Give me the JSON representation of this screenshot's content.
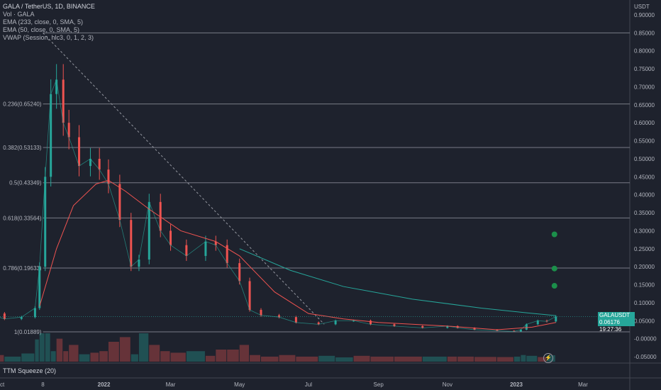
{
  "legend": {
    "title": "GALA / TetherUS, 1D, BINANCE",
    "lines": [
      "Vol · GALA",
      "EMA (233, close, 0, SMA, 5)",
      "EMA (50, close, 0, SMA, 5)",
      "VWAP (Session, hlc3, 0, 1, 2, 3)"
    ]
  },
  "indicator_label": "TTM Squeeze (20)",
  "price_tag": {
    "symbol": "GALAUSDT",
    "price": "0.06176",
    "countdown": "19:27:36"
  },
  "colors": {
    "bg": "#1e222d",
    "up": "#26a69a",
    "down": "#ef5350",
    "ema233": "#26a69a",
    "ema50": "#ef5350",
    "fib": "#787b86",
    "dot": "#1b8f4a"
  },
  "chart_data": {
    "type": "candlestick",
    "title": "GALA / TetherUS, 1D, BINANCE",
    "ylabel": "USDT",
    "ylim": [
      -0.06,
      0.91
    ],
    "y_ticks": [
      0.9,
      0.85,
      0.8,
      0.75,
      0.7,
      0.65,
      0.6,
      0.55,
      0.5,
      0.45,
      0.4,
      0.35,
      0.3,
      0.25,
      0.2,
      0.15,
      0.1,
      0.05,
      0.0,
      -0.05
    ],
    "y_tick_labels": [
      "0.90000",
      "0.85000",
      "0.80000",
      "0.75000",
      "0.70000",
      "0.65000",
      "0.60000",
      "0.55000",
      "0.50000",
      "0.45000",
      "0.40000",
      "0.35000",
      "0.30000",
      "0.25000",
      "0.20000",
      "0.15000",
      "0.10000",
      "0.05000",
      "-0.00000",
      "-0.05000"
    ],
    "x_ticks": [
      "Oct",
      "8",
      "2022",
      "Mar",
      "May",
      "Jul",
      "Sep",
      "Nov",
      "2023",
      "Mar"
    ],
    "x_tick_dates": [
      "2021-10-01",
      "2021-11-08",
      "2022-01-01",
      "2022-03-01",
      "2022-05-01",
      "2022-07-01",
      "2022-09-01",
      "2022-11-01",
      "2023-01-01",
      "2023-03-01"
    ],
    "fib_levels": [
      {
        "label": "0.236(0.65240)",
        "value": 0.6524
      },
      {
        "label": "0.382(0.53133)",
        "value": 0.53133
      },
      {
        "label": "0.5(0.43349)",
        "value": 0.43349
      },
      {
        "label": "0.618(0.33564)",
        "value": 0.33564
      },
      {
        "label": "0.786(0.19633)",
        "value": 0.19633
      },
      {
        "label": "1(0.01889)",
        "value": 0.01889
      }
    ],
    "fib_top": 0.85,
    "close_series": [
      [
        "2021-09-01",
        0.06
      ],
      [
        "2021-09-20",
        0.07
      ],
      [
        "2021-10-05",
        0.055
      ],
      [
        "2021-10-20",
        0.06
      ],
      [
        "2021-11-01",
        0.085
      ],
      [
        "2021-11-05",
        0.2
      ],
      [
        "2021-11-10",
        0.45
      ],
      [
        "2021-11-15",
        0.68
      ],
      [
        "2021-11-20",
        0.72
      ],
      [
        "2021-11-26",
        0.6
      ],
      [
        "2021-12-01",
        0.56
      ],
      [
        "2021-12-10",
        0.48
      ],
      [
        "2021-12-20",
        0.5
      ],
      [
        "2021-12-28",
        0.47
      ],
      [
        "2022-01-05",
        0.43
      ],
      [
        "2022-01-15",
        0.33
      ],
      [
        "2022-01-25",
        0.2
      ],
      [
        "2022-02-01",
        0.22
      ],
      [
        "2022-02-10",
        0.38
      ],
      [
        "2022-02-20",
        0.3
      ],
      [
        "2022-03-01",
        0.26
      ],
      [
        "2022-03-15",
        0.23
      ],
      [
        "2022-04-01",
        0.27
      ],
      [
        "2022-04-10",
        0.26
      ],
      [
        "2022-04-20",
        0.21
      ],
      [
        "2022-05-01",
        0.16
      ],
      [
        "2022-05-10",
        0.08
      ],
      [
        "2022-05-20",
        0.065
      ],
      [
        "2022-06-05",
        0.06
      ],
      [
        "2022-06-20",
        0.045
      ],
      [
        "2022-07-10",
        0.04
      ],
      [
        "2022-07-25",
        0.05
      ],
      [
        "2022-08-10",
        0.05
      ],
      [
        "2022-08-25",
        0.04
      ],
      [
        "2022-09-15",
        0.035
      ],
      [
        "2022-10-10",
        0.03
      ],
      [
        "2022-11-01",
        0.035
      ],
      [
        "2022-11-10",
        0.03
      ],
      [
        "2022-11-25",
        0.025
      ],
      [
        "2022-12-15",
        0.022
      ],
      [
        "2022-12-30",
        0.02
      ],
      [
        "2023-01-05",
        0.025
      ],
      [
        "2023-01-10",
        0.04
      ],
      [
        "2023-01-20",
        0.05
      ],
      [
        "2023-01-28",
        0.048
      ],
      [
        "2023-02-05",
        0.06176
      ]
    ],
    "ema50_series": [
      [
        "2021-11-05",
        0.09
      ],
      [
        "2021-11-20",
        0.25
      ],
      [
        "2021-12-05",
        0.37
      ],
      [
        "2021-12-25",
        0.43
      ],
      [
        "2022-01-05",
        0.44
      ],
      [
        "2022-01-20",
        0.41
      ],
      [
        "2022-02-10",
        0.36
      ],
      [
        "2022-03-10",
        0.3
      ],
      [
        "2022-04-10",
        0.27
      ],
      [
        "2022-05-01",
        0.23
      ],
      [
        "2022-06-01",
        0.13
      ],
      [
        "2022-07-01",
        0.07
      ],
      [
        "2022-08-01",
        0.055
      ],
      [
        "2022-09-01",
        0.045
      ],
      [
        "2022-11-01",
        0.035
      ],
      [
        "2022-12-15",
        0.025
      ],
      [
        "2023-01-15",
        0.032
      ],
      [
        "2023-02-05",
        0.045
      ]
    ],
    "ema233_series": [
      [
        "2022-05-01",
        0.25
      ],
      [
        "2022-06-15",
        0.19
      ],
      [
        "2022-08-01",
        0.145
      ],
      [
        "2022-10-01",
        0.11
      ],
      [
        "2022-12-01",
        0.085
      ],
      [
        "2023-01-10",
        0.072
      ],
      [
        "2023-02-05",
        0.064
      ]
    ],
    "trendline": [
      [
        "2021-11-08",
        0.85
      ],
      [
        "2022-07-15",
        0.04
      ]
    ],
    "squeeze_dots": [
      [
        "2023-02-05",
        0.29
      ],
      [
        "2023-02-05",
        0.195
      ],
      [
        "2023-02-05",
        0.147
      ]
    ],
    "last_price": 0.06176
  }
}
